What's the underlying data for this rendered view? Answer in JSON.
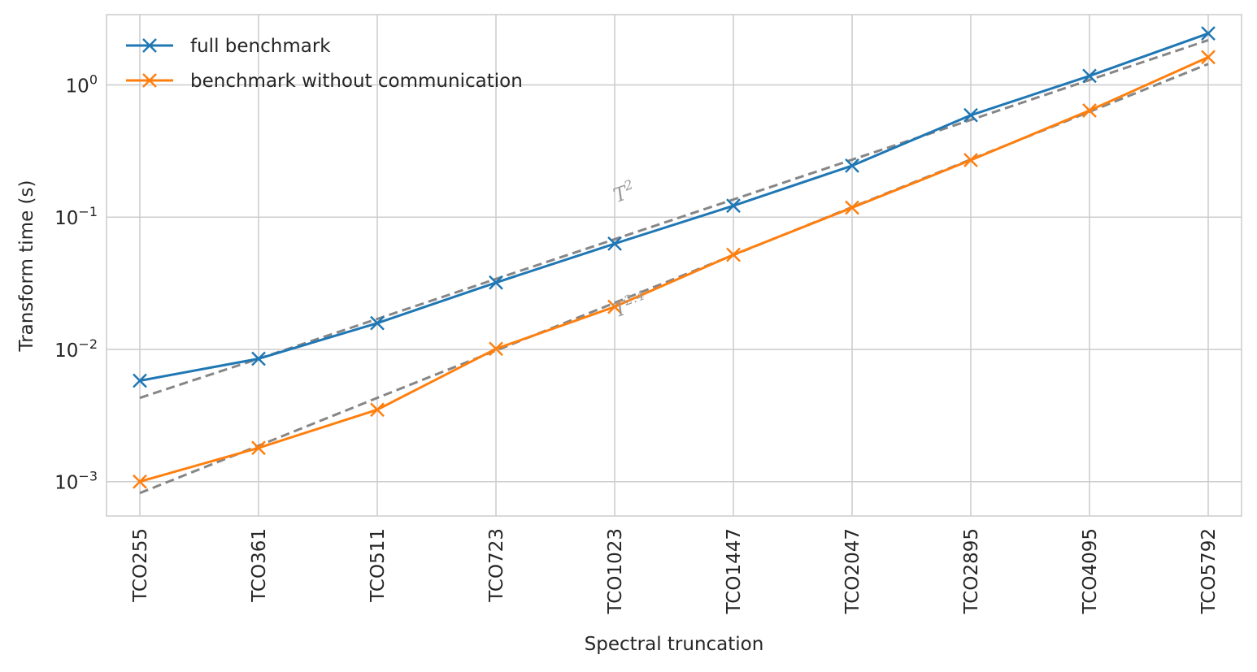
{
  "chart_data": {
    "type": "line",
    "title": "",
    "xlabel": "Spectral truncation",
    "ylabel": "Transform time (s)",
    "yscale": "log",
    "ylim": [
      0.00055,
      3.4
    ],
    "grid": true,
    "legend_position": "top-left",
    "categories": [
      "TCO255",
      "TCO361",
      "TCO511",
      "TCO723",
      "TCO1023",
      "TCO1447",
      "TCO2047",
      "TCO2895",
      "TCO4095",
      "TCO5792"
    ],
    "y_ticks": [
      {
        "value": 0.001,
        "base": "10",
        "exp": "−3"
      },
      {
        "value": 0.01,
        "base": "10",
        "exp": "−2"
      },
      {
        "value": 0.1,
        "base": "10",
        "exp": "−1"
      },
      {
        "value": 1,
        "base": "10",
        "exp": "0"
      }
    ],
    "series": [
      {
        "name": "full benchmark",
        "color": "#1f77b4",
        "marker": "x",
        "values": [
          0.0058,
          0.0085,
          0.0158,
          0.032,
          0.063,
          0.122,
          0.245,
          0.59,
          1.17,
          2.45
        ]
      },
      {
        "name": "benchmark without communication",
        "color": "#ff7f0e",
        "marker": "x",
        "values": [
          0.001,
          0.0018,
          0.0035,
          0.0101,
          0.021,
          0.052,
          0.118,
          0.27,
          0.64,
          1.62
        ]
      }
    ],
    "reference_lines": [
      {
        "label_base": "T",
        "label_exp": "2",
        "color": "#808080",
        "style": "dashed",
        "values": [
          0.0043,
          0.0085,
          0.017,
          0.0341,
          0.0681,
          0.136,
          0.272,
          0.544,
          1.09,
          2.18
        ]
      },
      {
        "label_base": "T",
        "label_exp": "2.4",
        "color": "#808080",
        "style": "dashed",
        "values": [
          0.00082,
          0.00187,
          0.0043,
          0.0098,
          0.0225,
          0.0517,
          0.119,
          0.273,
          0.627,
          1.44
        ]
      }
    ]
  }
}
